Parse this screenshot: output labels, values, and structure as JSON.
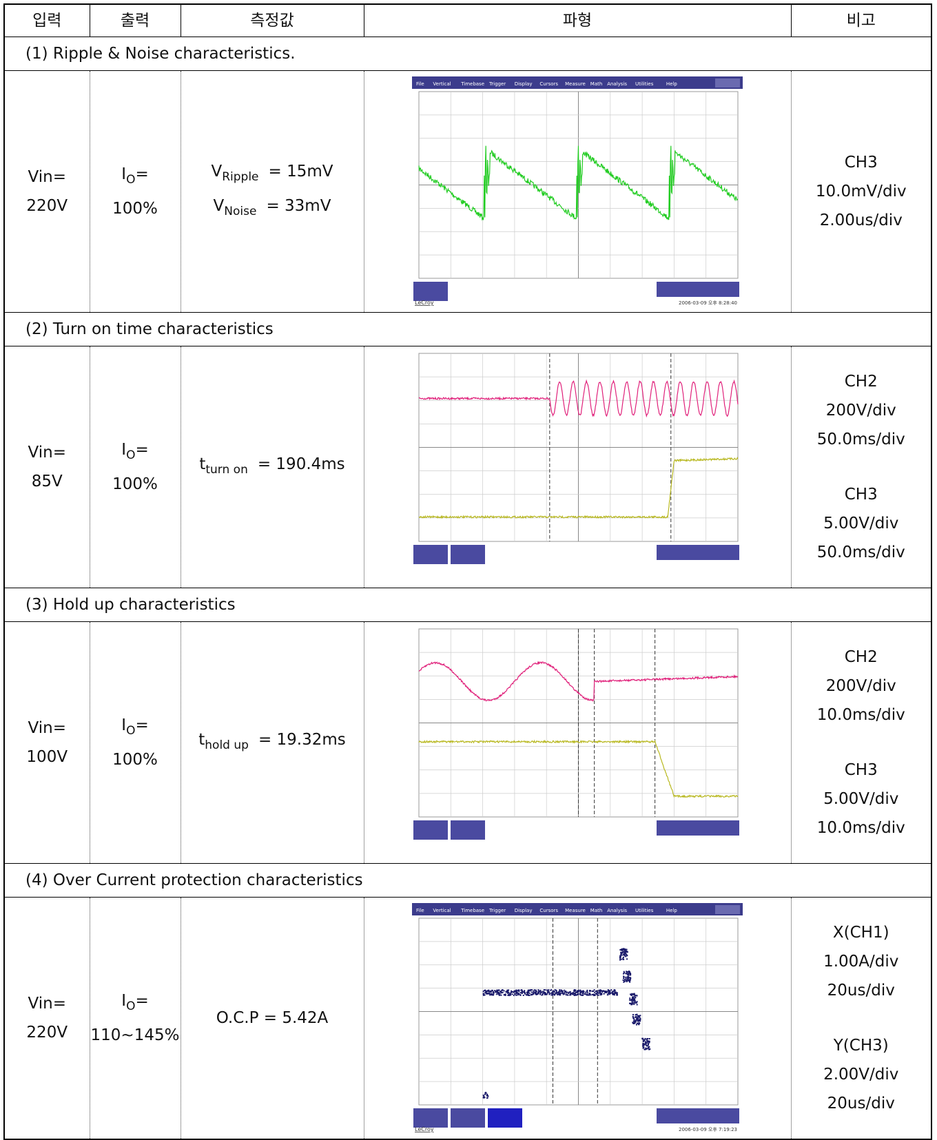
{
  "header": [
    "입력",
    "출력",
    "측정값",
    "파형",
    "비고"
  ],
  "sections": [
    {
      "title": "(1) Ripple & Noise characteristics.",
      "input": [
        "Vin=",
        "220V"
      ],
      "output": {
        "symbol": "I",
        "sub": "O",
        "eq": "=",
        "value": "100%"
      },
      "measurement": [
        {
          "main": "V",
          "sub": "Ripple",
          "rest": "= 15mV"
        },
        {
          "main": "V",
          "sub": "Noise",
          "rest": "= 33mV"
        }
      ],
      "scope": {
        "menu": [
          "File",
          "Vertical",
          "Timebase",
          "Trigger",
          "Display",
          "Cursors",
          "Measure",
          "Math",
          "Analysis",
          "Utilities",
          "Help"
        ],
        "brand": "LeCroy",
        "timestamp": "2006-03-09 오후 8:28:40"
      },
      "remarks": [
        [
          "CH3",
          "10.0mV/div",
          "2.00us/div"
        ]
      ]
    },
    {
      "title": "(2) Turn on time characteristics",
      "input": [
        "Vin=",
        "85V"
      ],
      "output": {
        "symbol": "I",
        "sub": "O",
        "eq": "=",
        "value": "100%"
      },
      "measurement": [
        {
          "main": "t",
          "sub": "turn on",
          "rest": "= 190.4ms"
        }
      ],
      "remarks": [
        [
          "CH2",
          "200V/div",
          "50.0ms/div"
        ],
        [
          "CH3",
          "5.00V/div",
          "50.0ms/div"
        ]
      ]
    },
    {
      "title": "(3) Hold up characteristics",
      "input": [
        "Vin=",
        "100V"
      ],
      "output": {
        "symbol": "I",
        "sub": "O",
        "eq": "=",
        "value": "100%"
      },
      "measurement": [
        {
          "main": "t",
          "sub": "hold up",
          "rest": "= 19.32ms"
        }
      ],
      "remarks": [
        [
          "CH2",
          "200V/div",
          "10.0ms/div"
        ],
        [
          "CH3",
          "5.00V/div",
          "10.0ms/div"
        ]
      ]
    },
    {
      "title": "(4) Over Current protection characteristics",
      "input": [
        "Vin=",
        "220V"
      ],
      "output": {
        "symbol": "I",
        "sub": "O",
        "eq": "=",
        "value": "110~145%"
      },
      "measurement": [
        {
          "main": "O.C.P = 5.42A"
        }
      ],
      "scope": {
        "menu": [
          "File",
          "Vertical",
          "Timebase",
          "Trigger",
          "Display",
          "Cursors",
          "Measure",
          "Math",
          "Analysis",
          "Utilities",
          "Help"
        ],
        "brand": "LeCroy",
        "timestamp": "2006-03-09 오후 7:19:23"
      },
      "remarks": [
        [
          "X(CH1)",
          "1.00A/div",
          "20us/div"
        ],
        [
          "Y(CH3)",
          "2.00V/div",
          "20us/div"
        ]
      ]
    }
  ]
}
